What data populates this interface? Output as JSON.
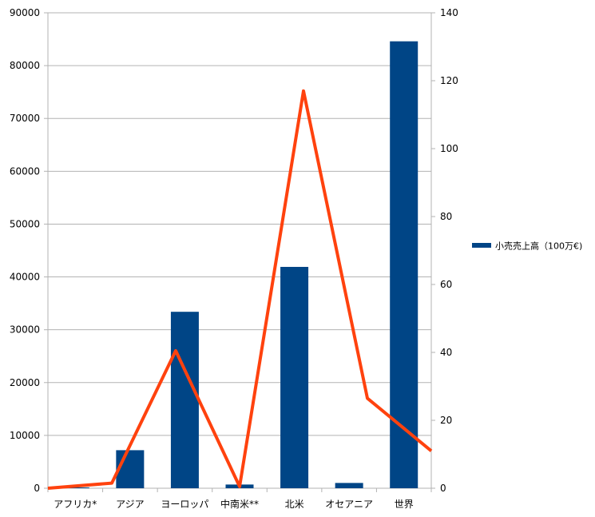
{
  "chart_data": {
    "type": "bar",
    "categories": [
      "アフリカ*",
      "アジア",
      "ヨーロッパ",
      "中南米**",
      "北米",
      "オセアニア",
      "世界"
    ],
    "series": [
      {
        "name": "小売売上高（100万€)",
        "type": "bar",
        "axis": "left",
        "color": "#004586",
        "values": [
          150,
          7200,
          33400,
          700,
          41900,
          1000,
          84600
        ]
      },
      {
        "type": "line",
        "axis": "right",
        "color": "#ff420e",
        "values": [
          0,
          1.5,
          40.5,
          0.5,
          117,
          26.5,
          11
        ]
      }
    ],
    "ylim": [
      0,
      90000
    ],
    "y_ticks": [
      "0",
      "10000",
      "20000",
      "30000",
      "40000",
      "50000",
      "60000",
      "70000",
      "80000",
      "90000"
    ],
    "y2lim": [
      0,
      140
    ],
    "y2_ticks": [
      "0",
      "20",
      "40",
      "60",
      "80",
      "100",
      "120",
      "140"
    ],
    "grid": true,
    "legend_position": "right"
  }
}
